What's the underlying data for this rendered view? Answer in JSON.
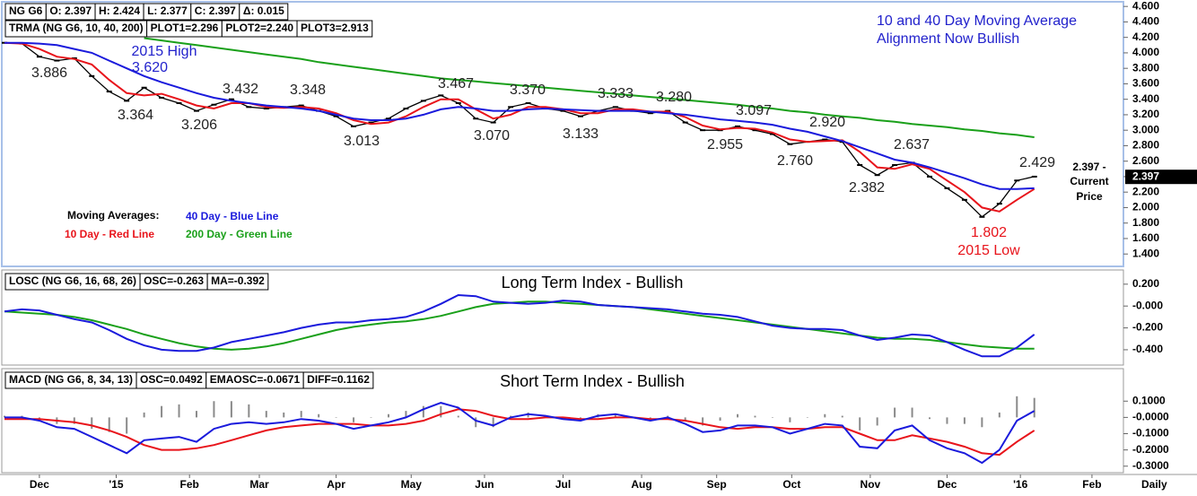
{
  "chart_data": [
    {
      "type": "line",
      "header": [
        "NG G6",
        "O: 2.397",
        "H: 2.424",
        "L: 2.377",
        "C: 2.397",
        "Δ: 0.015"
      ],
      "study_header": [
        "TRMA (NG G6, 10, 40, 200)",
        "PLOT1=2.296",
        "PLOT2=2.240",
        "PLOT3=2.913"
      ],
      "title": [
        "10 and 40 Day Moving Average",
        "Alignment Now Bullish"
      ],
      "legend_title": "Moving Averages:",
      "annotations": [
        "2015 High",
        "3.620",
        "3.886",
        "3.364",
        "3.206",
        "3.432",
        "3.348",
        "3.013",
        "3.467",
        "3.070",
        "3.370",
        "3.133",
        "3.333",
        "3.280",
        "2.955",
        "3.097",
        "2.760",
        "2.920",
        "2.382",
        "2.637",
        "2.429",
        "1.802",
        "2015 Low"
      ],
      "current_price_note": [
        "2.397 -",
        "Current",
        "Price"
      ],
      "last_price_label": "2.397",
      "xlim": [
        0,
        64
      ],
      "ylim": [
        1.24,
        4.66
      ],
      "yticks": [
        {
          "value": 4.6,
          "label": "4.600"
        },
        {
          "value": 4.4,
          "label": "4.400"
        },
        {
          "value": 4.2,
          "label": "4.200"
        },
        {
          "value": 4.0,
          "label": "4.000"
        },
        {
          "value": 3.8,
          "label": "3.800"
        },
        {
          "value": 3.6,
          "label": "3.600"
        },
        {
          "value": 3.4,
          "label": "3.400"
        },
        {
          "value": 3.2,
          "label": "3.200"
        },
        {
          "value": 3.0,
          "label": "3.000"
        },
        {
          "value": 2.8,
          "label": "2.800"
        },
        {
          "value": 2.6,
          "label": "2.600"
        },
        {
          "value": 2.4,
          "label": "2.400"
        },
        {
          "value": 2.2,
          "label": "2.200"
        },
        {
          "value": 2.0,
          "label": "2.000"
        },
        {
          "value": 1.8,
          "label": "1.800"
        },
        {
          "value": 1.6,
          "label": "1.600"
        },
        {
          "value": 1.4,
          "label": "1.400"
        }
      ],
      "series": [
        {
          "color": "#000000",
          "values": [
            4.13,
            4.12,
            3.95,
            3.9,
            3.93,
            3.7,
            3.5,
            3.38,
            3.55,
            3.42,
            3.35,
            3.25,
            3.33,
            3.4,
            3.3,
            3.28,
            3.3,
            3.32,
            3.25,
            3.18,
            3.05,
            3.1,
            3.15,
            3.28,
            3.38,
            3.45,
            3.35,
            3.15,
            3.1,
            3.3,
            3.35,
            3.28,
            3.25,
            3.18,
            3.25,
            3.3,
            3.25,
            3.22,
            3.25,
            3.1,
            3.0,
            3.0,
            3.05,
            3.0,
            2.95,
            2.82,
            2.85,
            2.88,
            2.85,
            2.55,
            2.42,
            2.55,
            2.58,
            2.4,
            2.25,
            2.1,
            1.88,
            2.05,
            2.35,
            2.4
          ]
        },
        {
          "name": "10 Day - Red Line",
          "color": "#e8141b",
          "values": [
            4.13,
            4.12,
            4.05,
            3.95,
            3.92,
            3.85,
            3.65,
            3.48,
            3.45,
            3.47,
            3.4,
            3.32,
            3.28,
            3.35,
            3.35,
            3.3,
            3.29,
            3.3,
            3.28,
            3.22,
            3.13,
            3.08,
            3.1,
            3.18,
            3.3,
            3.4,
            3.4,
            3.27,
            3.15,
            3.2,
            3.3,
            3.3,
            3.27,
            3.22,
            3.22,
            3.27,
            3.27,
            3.24,
            3.24,
            3.17,
            3.06,
            3.01,
            3.03,
            3.02,
            2.97,
            2.88,
            2.85,
            2.86,
            2.87,
            2.72,
            2.52,
            2.5,
            2.56,
            2.5,
            2.35,
            2.2,
            2.0,
            1.95,
            2.1,
            2.24
          ]
        },
        {
          "name": "40 Day - Blue Line",
          "color": "#1a1adc",
          "values": [
            4.13,
            4.13,
            4.12,
            4.1,
            4.05,
            4.0,
            3.9,
            3.8,
            3.7,
            3.62,
            3.55,
            3.48,
            3.42,
            3.38,
            3.35,
            3.32,
            3.3,
            3.28,
            3.25,
            3.2,
            3.15,
            3.13,
            3.13,
            3.15,
            3.2,
            3.27,
            3.3,
            3.28,
            3.25,
            3.25,
            3.27,
            3.28,
            3.27,
            3.26,
            3.25,
            3.25,
            3.25,
            3.24,
            3.22,
            3.2,
            3.17,
            3.14,
            3.12,
            3.1,
            3.07,
            3.02,
            2.98,
            2.92,
            2.86,
            2.78,
            2.7,
            2.62,
            2.58,
            2.52,
            2.45,
            2.38,
            2.3,
            2.24,
            2.24,
            2.25
          ]
        },
        {
          "name": "200 Day - Green Line",
          "color": "#1aa01a",
          "values": [
            null,
            null,
            null,
            null,
            null,
            null,
            null,
            null,
            4.19,
            4.16,
            4.13,
            4.1,
            4.07,
            4.04,
            4.01,
            3.98,
            3.95,
            3.92,
            3.88,
            3.85,
            3.82,
            3.79,
            3.76,
            3.73,
            3.7,
            3.67,
            3.65,
            3.63,
            3.61,
            3.59,
            3.57,
            3.55,
            3.53,
            3.51,
            3.49,
            3.47,
            3.45,
            3.43,
            3.41,
            3.39,
            3.37,
            3.35,
            3.33,
            3.3,
            3.28,
            3.25,
            3.23,
            3.2,
            3.18,
            3.16,
            3.13,
            3.11,
            3.08,
            3.06,
            3.04,
            3.01,
            2.99,
            2.96,
            2.94,
            2.91
          ]
        }
      ]
    },
    {
      "type": "line",
      "header": [
        "LOSC (NG G6, 16, 68, 26)",
        "OSC=-0.263",
        "MA=-0.392"
      ],
      "title": "Long Term Index - Bullish",
      "xlim": [
        0,
        64
      ],
      "ylim": [
        -0.54,
        0.33
      ],
      "yticks": [
        {
          "value": 0.2,
          "label": "0.200"
        },
        {
          "value": 0,
          "label": "-0.000"
        },
        {
          "value": -0.2,
          "label": "-0.200"
        },
        {
          "value": -0.4,
          "label": "-0.400"
        }
      ],
      "series": [
        {
          "color": "#1aa01a",
          "values": [
            -0.05,
            -0.06,
            -0.07,
            -0.08,
            -0.1,
            -0.13,
            -0.17,
            -0.21,
            -0.26,
            -0.3,
            -0.34,
            -0.37,
            -0.39,
            -0.4,
            -0.39,
            -0.37,
            -0.34,
            -0.3,
            -0.26,
            -0.22,
            -0.19,
            -0.17,
            -0.15,
            -0.14,
            -0.12,
            -0.09,
            -0.05,
            -0.01,
            0.02,
            0.03,
            0.04,
            0.04,
            0.03,
            0.02,
            0.01,
            0.0,
            -0.01,
            -0.03,
            -0.05,
            -0.07,
            -0.09,
            -0.11,
            -0.13,
            -0.15,
            -0.17,
            -0.19,
            -0.21,
            -0.23,
            -0.25,
            -0.27,
            -0.29,
            -0.3,
            -0.3,
            -0.31,
            -0.33,
            -0.35,
            -0.37,
            -0.38,
            -0.39,
            -0.39
          ]
        },
        {
          "color": "#1a1adc",
          "values": [
            -0.05,
            -0.03,
            -0.04,
            -0.08,
            -0.12,
            -0.15,
            -0.22,
            -0.3,
            -0.36,
            -0.4,
            -0.41,
            -0.41,
            -0.38,
            -0.33,
            -0.3,
            -0.27,
            -0.24,
            -0.2,
            -0.17,
            -0.15,
            -0.15,
            -0.13,
            -0.12,
            -0.1,
            -0.05,
            0.02,
            0.1,
            0.09,
            0.04,
            0.03,
            0.02,
            0.03,
            0.05,
            0.04,
            0.01,
            0.0,
            -0.01,
            -0.02,
            -0.03,
            -0.05,
            -0.07,
            -0.08,
            -0.1,
            -0.14,
            -0.18,
            -0.2,
            -0.21,
            -0.21,
            -0.22,
            -0.27,
            -0.31,
            -0.29,
            -0.26,
            -0.27,
            -0.33,
            -0.4,
            -0.46,
            -0.46,
            -0.38,
            -0.26
          ]
        }
      ]
    },
    {
      "type": "line",
      "header": [
        "MACD (NG G6, 8, 34, 13)",
        "OSC=0.0492",
        "EMAOSC=-0.0671",
        "DIFF=0.1162"
      ],
      "title": "Short Term Index - Bullish",
      "x_label": "Daily",
      "xlim": [
        0,
        64
      ],
      "xticks": [
        {
          "value": 2,
          "label": "Dec"
        },
        {
          "value": 6.4,
          "label": "'15"
        },
        {
          "value": 10.6,
          "label": "Feb"
        },
        {
          "value": 14.6,
          "label": "Mar"
        },
        {
          "value": 19,
          "label": "Apr"
        },
        {
          "value": 23.3,
          "label": "May"
        },
        {
          "value": 27.5,
          "label": "Jun"
        },
        {
          "value": 32,
          "label": "Jul"
        },
        {
          "value": 36.5,
          "label": "Aug"
        },
        {
          "value": 40.8,
          "label": "Sep"
        },
        {
          "value": 45.1,
          "label": "Oct"
        },
        {
          "value": 49.6,
          "label": "Nov"
        },
        {
          "value": 54,
          "label": "Dec"
        },
        {
          "value": 58.2,
          "label": "'16"
        },
        {
          "value": 62.3,
          "label": "Feb"
        }
      ],
      "ylim": [
        -0.34,
        0.3
      ],
      "yticks": [
        {
          "value": 0.1,
          "label": "0.1000"
        },
        {
          "value": 0,
          "label": "-0.0000"
        },
        {
          "value": -0.1,
          "label": "-0.1000"
        },
        {
          "value": -0.2,
          "label": "-0.2000"
        },
        {
          "value": -0.3,
          "label": "-0.3000"
        }
      ],
      "series": [
        {
          "type": "bar",
          "color": "#8a8a8a",
          "values": [
            0.01,
            0.01,
            -0.01,
            -0.04,
            -0.04,
            -0.07,
            -0.09,
            -0.1,
            0.03,
            0.07,
            0.08,
            0.04,
            0.1,
            0.1,
            0.08,
            0.04,
            0.03,
            0.04,
            0.02,
            0.0,
            -0.03,
            0.0,
            0.02,
            0.04,
            0.07,
            0.07,
            0.01,
            -0.06,
            -0.06,
            0.01,
            0.03,
            0.01,
            -0.01,
            -0.01,
            0.02,
            0.02,
            0.0,
            -0.01,
            0.01,
            -0.02,
            -0.05,
            -0.02,
            0.02,
            0.01,
            0.0,
            -0.03,
            0.0,
            0.02,
            0.01,
            -0.08,
            -0.05,
            0.06,
            0.06,
            -0.01,
            -0.04,
            -0.04,
            -0.06,
            0.03,
            0.13,
            0.12
          ]
        },
        {
          "color": "#e8141b",
          "values": [
            -0.01,
            -0.01,
            -0.01,
            -0.02,
            -0.03,
            -0.05,
            -0.08,
            -0.12,
            -0.17,
            -0.2,
            -0.2,
            -0.19,
            -0.17,
            -0.14,
            -0.11,
            -0.08,
            -0.06,
            -0.05,
            -0.04,
            -0.04,
            -0.04,
            -0.05,
            -0.05,
            -0.04,
            -0.02,
            0.02,
            0.05,
            0.04,
            0.01,
            -0.01,
            -0.01,
            0.0,
            0.0,
            -0.01,
            -0.01,
            0.0,
            0.0,
            -0.01,
            -0.01,
            -0.02,
            -0.04,
            -0.06,
            -0.07,
            -0.06,
            -0.06,
            -0.07,
            -0.07,
            -0.06,
            -0.06,
            -0.1,
            -0.14,
            -0.14,
            -0.11,
            -0.13,
            -0.15,
            -0.18,
            -0.22,
            -0.23,
            -0.15,
            -0.08
          ]
        },
        {
          "color": "#1a1adc",
          "values": [
            0.0,
            0.0,
            -0.02,
            -0.06,
            -0.07,
            -0.12,
            -0.17,
            -0.22,
            -0.14,
            -0.13,
            -0.12,
            -0.15,
            -0.07,
            -0.04,
            -0.03,
            -0.04,
            -0.03,
            -0.01,
            -0.02,
            -0.04,
            -0.07,
            -0.05,
            -0.03,
            0.0,
            0.05,
            0.09,
            0.06,
            -0.02,
            -0.05,
            0.0,
            0.02,
            0.01,
            -0.01,
            -0.02,
            0.01,
            0.02,
            0.0,
            -0.02,
            0.0,
            -0.04,
            -0.09,
            -0.08,
            -0.05,
            -0.05,
            -0.06,
            -0.1,
            -0.07,
            -0.04,
            -0.05,
            -0.18,
            -0.19,
            -0.08,
            -0.05,
            -0.14,
            -0.19,
            -0.22,
            -0.28,
            -0.2,
            -0.02,
            0.04
          ]
        }
      ]
    }
  ]
}
